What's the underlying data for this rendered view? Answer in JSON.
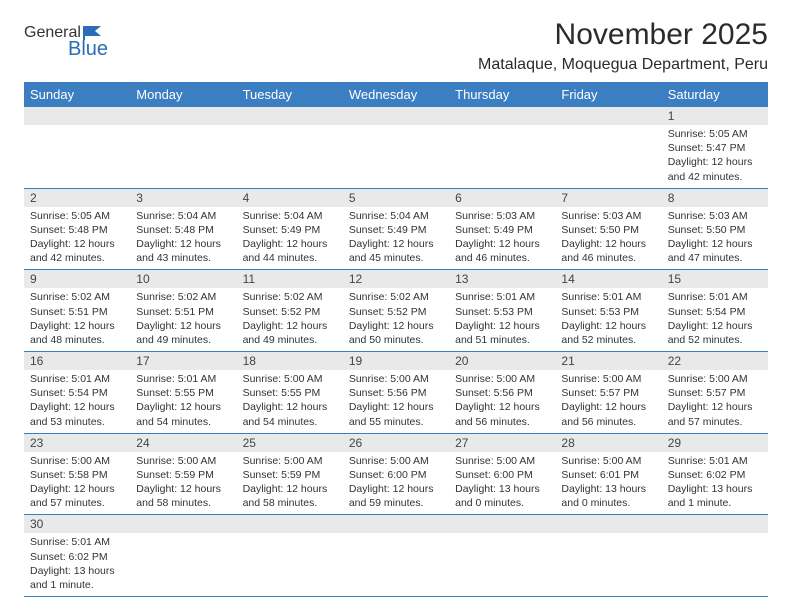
{
  "logo": {
    "general": "General",
    "blue": "Blue"
  },
  "title": "November 2025",
  "location": "Matalaque, Moquegua Department, Peru",
  "colors": {
    "header_bg": "#3b7ec1",
    "header_text": "#ffffff",
    "daynum_bg": "#e9e9e9",
    "border": "#3b7ec1",
    "text": "#333333",
    "logo_blue": "#2a6db8"
  },
  "typography": {
    "title_fontsize": 30,
    "location_fontsize": 16,
    "weekday_fontsize": 13,
    "daynum_fontsize": 12,
    "details_fontsize": 10.5
  },
  "weekdays": [
    "Sunday",
    "Monday",
    "Tuesday",
    "Wednesday",
    "Thursday",
    "Friday",
    "Saturday"
  ],
  "weeks": [
    [
      {
        "n": "",
        "sunrise": "",
        "sunset": "",
        "daylight": ""
      },
      {
        "n": "",
        "sunrise": "",
        "sunset": "",
        "daylight": ""
      },
      {
        "n": "",
        "sunrise": "",
        "sunset": "",
        "daylight": ""
      },
      {
        "n": "",
        "sunrise": "",
        "sunset": "",
        "daylight": ""
      },
      {
        "n": "",
        "sunrise": "",
        "sunset": "",
        "daylight": ""
      },
      {
        "n": "",
        "sunrise": "",
        "sunset": "",
        "daylight": ""
      },
      {
        "n": "1",
        "sunrise": "Sunrise: 5:05 AM",
        "sunset": "Sunset: 5:47 PM",
        "daylight": "Daylight: 12 hours and 42 minutes."
      }
    ],
    [
      {
        "n": "2",
        "sunrise": "Sunrise: 5:05 AM",
        "sunset": "Sunset: 5:48 PM",
        "daylight": "Daylight: 12 hours and 42 minutes."
      },
      {
        "n": "3",
        "sunrise": "Sunrise: 5:04 AM",
        "sunset": "Sunset: 5:48 PM",
        "daylight": "Daylight: 12 hours and 43 minutes."
      },
      {
        "n": "4",
        "sunrise": "Sunrise: 5:04 AM",
        "sunset": "Sunset: 5:49 PM",
        "daylight": "Daylight: 12 hours and 44 minutes."
      },
      {
        "n": "5",
        "sunrise": "Sunrise: 5:04 AM",
        "sunset": "Sunset: 5:49 PM",
        "daylight": "Daylight: 12 hours and 45 minutes."
      },
      {
        "n": "6",
        "sunrise": "Sunrise: 5:03 AM",
        "sunset": "Sunset: 5:49 PM",
        "daylight": "Daylight: 12 hours and 46 minutes."
      },
      {
        "n": "7",
        "sunrise": "Sunrise: 5:03 AM",
        "sunset": "Sunset: 5:50 PM",
        "daylight": "Daylight: 12 hours and 46 minutes."
      },
      {
        "n": "8",
        "sunrise": "Sunrise: 5:03 AM",
        "sunset": "Sunset: 5:50 PM",
        "daylight": "Daylight: 12 hours and 47 minutes."
      }
    ],
    [
      {
        "n": "9",
        "sunrise": "Sunrise: 5:02 AM",
        "sunset": "Sunset: 5:51 PM",
        "daylight": "Daylight: 12 hours and 48 minutes."
      },
      {
        "n": "10",
        "sunrise": "Sunrise: 5:02 AM",
        "sunset": "Sunset: 5:51 PM",
        "daylight": "Daylight: 12 hours and 49 minutes."
      },
      {
        "n": "11",
        "sunrise": "Sunrise: 5:02 AM",
        "sunset": "Sunset: 5:52 PM",
        "daylight": "Daylight: 12 hours and 49 minutes."
      },
      {
        "n": "12",
        "sunrise": "Sunrise: 5:02 AM",
        "sunset": "Sunset: 5:52 PM",
        "daylight": "Daylight: 12 hours and 50 minutes."
      },
      {
        "n": "13",
        "sunrise": "Sunrise: 5:01 AM",
        "sunset": "Sunset: 5:53 PM",
        "daylight": "Daylight: 12 hours and 51 minutes."
      },
      {
        "n": "14",
        "sunrise": "Sunrise: 5:01 AM",
        "sunset": "Sunset: 5:53 PM",
        "daylight": "Daylight: 12 hours and 52 minutes."
      },
      {
        "n": "15",
        "sunrise": "Sunrise: 5:01 AM",
        "sunset": "Sunset: 5:54 PM",
        "daylight": "Daylight: 12 hours and 52 minutes."
      }
    ],
    [
      {
        "n": "16",
        "sunrise": "Sunrise: 5:01 AM",
        "sunset": "Sunset: 5:54 PM",
        "daylight": "Daylight: 12 hours and 53 minutes."
      },
      {
        "n": "17",
        "sunrise": "Sunrise: 5:01 AM",
        "sunset": "Sunset: 5:55 PM",
        "daylight": "Daylight: 12 hours and 54 minutes."
      },
      {
        "n": "18",
        "sunrise": "Sunrise: 5:00 AM",
        "sunset": "Sunset: 5:55 PM",
        "daylight": "Daylight: 12 hours and 54 minutes."
      },
      {
        "n": "19",
        "sunrise": "Sunrise: 5:00 AM",
        "sunset": "Sunset: 5:56 PM",
        "daylight": "Daylight: 12 hours and 55 minutes."
      },
      {
        "n": "20",
        "sunrise": "Sunrise: 5:00 AM",
        "sunset": "Sunset: 5:56 PM",
        "daylight": "Daylight: 12 hours and 56 minutes."
      },
      {
        "n": "21",
        "sunrise": "Sunrise: 5:00 AM",
        "sunset": "Sunset: 5:57 PM",
        "daylight": "Daylight: 12 hours and 56 minutes."
      },
      {
        "n": "22",
        "sunrise": "Sunrise: 5:00 AM",
        "sunset": "Sunset: 5:57 PM",
        "daylight": "Daylight: 12 hours and 57 minutes."
      }
    ],
    [
      {
        "n": "23",
        "sunrise": "Sunrise: 5:00 AM",
        "sunset": "Sunset: 5:58 PM",
        "daylight": "Daylight: 12 hours and 57 minutes."
      },
      {
        "n": "24",
        "sunrise": "Sunrise: 5:00 AM",
        "sunset": "Sunset: 5:59 PM",
        "daylight": "Daylight: 12 hours and 58 minutes."
      },
      {
        "n": "25",
        "sunrise": "Sunrise: 5:00 AM",
        "sunset": "Sunset: 5:59 PM",
        "daylight": "Daylight: 12 hours and 58 minutes."
      },
      {
        "n": "26",
        "sunrise": "Sunrise: 5:00 AM",
        "sunset": "Sunset: 6:00 PM",
        "daylight": "Daylight: 12 hours and 59 minutes."
      },
      {
        "n": "27",
        "sunrise": "Sunrise: 5:00 AM",
        "sunset": "Sunset: 6:00 PM",
        "daylight": "Daylight: 13 hours and 0 minutes."
      },
      {
        "n": "28",
        "sunrise": "Sunrise: 5:00 AM",
        "sunset": "Sunset: 6:01 PM",
        "daylight": "Daylight: 13 hours and 0 minutes."
      },
      {
        "n": "29",
        "sunrise": "Sunrise: 5:01 AM",
        "sunset": "Sunset: 6:02 PM",
        "daylight": "Daylight: 13 hours and 1 minute."
      }
    ],
    [
      {
        "n": "30",
        "sunrise": "Sunrise: 5:01 AM",
        "sunset": "Sunset: 6:02 PM",
        "daylight": "Daylight: 13 hours and 1 minute."
      },
      {
        "n": "",
        "sunrise": "",
        "sunset": "",
        "daylight": ""
      },
      {
        "n": "",
        "sunrise": "",
        "sunset": "",
        "daylight": ""
      },
      {
        "n": "",
        "sunrise": "",
        "sunset": "",
        "daylight": ""
      },
      {
        "n": "",
        "sunrise": "",
        "sunset": "",
        "daylight": ""
      },
      {
        "n": "",
        "sunrise": "",
        "sunset": "",
        "daylight": ""
      },
      {
        "n": "",
        "sunrise": "",
        "sunset": "",
        "daylight": ""
      }
    ]
  ]
}
